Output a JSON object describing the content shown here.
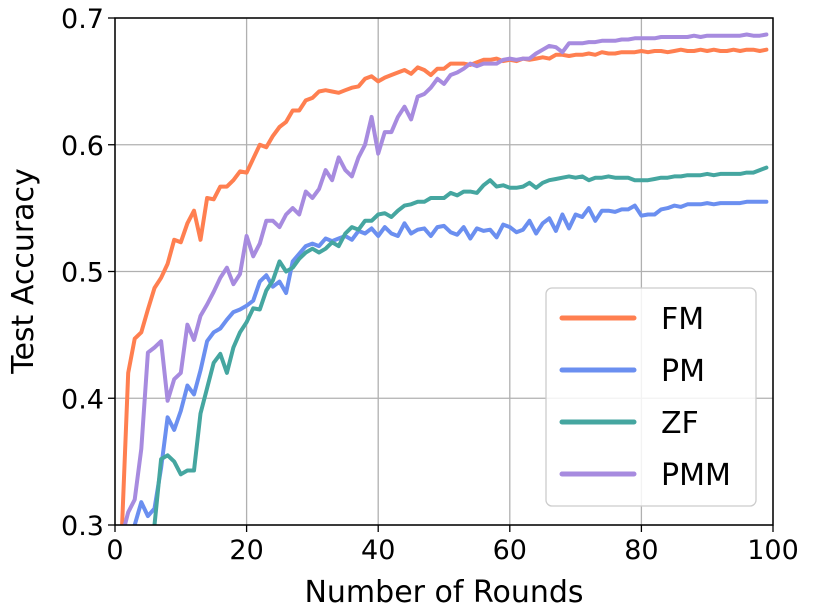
{
  "chart_data": {
    "type": "line",
    "title": "",
    "xlabel": "Number of Rounds",
    "ylabel": "Test Accuracy",
    "xlim": [
      0,
      100
    ],
    "ylim": [
      0.3,
      0.7
    ],
    "xticks": [
      0,
      20,
      40,
      60,
      80,
      100
    ],
    "yticks": [
      0.3,
      0.4,
      0.5,
      0.6,
      0.7
    ],
    "xtick_labels": [
      "0",
      "20",
      "40",
      "60",
      "80",
      "100"
    ],
    "ytick_labels": [
      "0.3",
      "0.4",
      "0.5",
      "0.6",
      "0.7"
    ],
    "grid": true,
    "legend_position": "lower-right",
    "x": [
      1,
      2,
      3,
      4,
      5,
      6,
      7,
      8,
      9,
      10,
      11,
      12,
      13,
      14,
      15,
      16,
      17,
      18,
      19,
      20,
      21,
      22,
      23,
      24,
      25,
      26,
      27,
      28,
      29,
      30,
      31,
      32,
      33,
      34,
      35,
      36,
      37,
      38,
      39,
      40,
      41,
      42,
      43,
      44,
      45,
      46,
      47,
      48,
      49,
      50,
      51,
      52,
      53,
      54,
      55,
      56,
      57,
      58,
      59,
      60,
      61,
      62,
      63,
      64,
      65,
      66,
      67,
      68,
      69,
      70,
      71,
      72,
      73,
      74,
      75,
      76,
      77,
      78,
      79,
      80,
      81,
      82,
      83,
      84,
      85,
      86,
      87,
      88,
      89,
      90,
      91,
      92,
      93,
      94,
      95,
      96,
      97,
      98,
      99
    ],
    "series": [
      {
        "name": "FM",
        "color": "#ff7f50",
        "values": [
          0.29,
          0.42,
          0.447,
          0.452,
          0.47,
          0.487,
          0.495,
          0.506,
          0.525,
          0.523,
          0.538,
          0.548,
          0.525,
          0.558,
          0.557,
          0.567,
          0.567,
          0.572,
          0.579,
          0.578,
          0.589,
          0.6,
          0.598,
          0.607,
          0.614,
          0.618,
          0.627,
          0.627,
          0.635,
          0.637,
          0.642,
          0.643,
          0.642,
          0.641,
          0.643,
          0.645,
          0.646,
          0.652,
          0.654,
          0.65,
          0.653,
          0.655,
          0.657,
          0.659,
          0.656,
          0.661,
          0.659,
          0.655,
          0.66,
          0.66,
          0.664,
          0.664,
          0.664,
          0.663,
          0.665,
          0.667,
          0.667,
          0.668,
          0.666,
          0.667,
          0.666,
          0.668,
          0.667,
          0.668,
          0.669,
          0.668,
          0.671,
          0.671,
          0.67,
          0.671,
          0.671,
          0.672,
          0.671,
          0.673,
          0.672,
          0.672,
          0.673,
          0.673,
          0.673,
          0.674,
          0.673,
          0.674,
          0.674,
          0.673,
          0.674,
          0.675,
          0.674,
          0.674,
          0.675,
          0.674,
          0.675,
          0.674,
          0.674,
          0.675,
          0.674,
          0.675,
          0.675,
          0.674,
          0.675
        ]
      },
      {
        "name": "PM",
        "color": "#6b8ff0",
        "values": [
          0.27,
          0.285,
          0.3,
          0.318,
          0.307,
          0.313,
          0.345,
          0.385,
          0.375,
          0.39,
          0.41,
          0.403,
          0.422,
          0.445,
          0.452,
          0.455,
          0.462,
          0.468,
          0.47,
          0.473,
          0.477,
          0.492,
          0.497,
          0.488,
          0.492,
          0.483,
          0.508,
          0.514,
          0.52,
          0.522,
          0.52,
          0.526,
          0.524,
          0.526,
          0.528,
          0.525,
          0.532,
          0.53,
          0.534,
          0.528,
          0.535,
          0.53,
          0.528,
          0.538,
          0.53,
          0.533,
          0.534,
          0.528,
          0.535,
          0.536,
          0.531,
          0.529,
          0.535,
          0.526,
          0.534,
          0.532,
          0.533,
          0.527,
          0.537,
          0.535,
          0.531,
          0.533,
          0.54,
          0.53,
          0.538,
          0.542,
          0.532,
          0.545,
          0.534,
          0.545,
          0.543,
          0.55,
          0.54,
          0.548,
          0.548,
          0.547,
          0.549,
          0.549,
          0.552,
          0.544,
          0.545,
          0.545,
          0.549,
          0.55,
          0.552,
          0.551,
          0.553,
          0.553,
          0.553,
          0.554,
          0.553,
          0.554,
          0.554,
          0.554,
          0.554,
          0.555,
          0.555,
          0.555,
          0.555
        ]
      },
      {
        "name": "ZF",
        "color": "#45a6a0",
        "values": [
          0.25,
          0.26,
          0.27,
          0.28,
          0.29,
          0.3,
          0.352,
          0.355,
          0.35,
          0.34,
          0.343,
          0.343,
          0.388,
          0.408,
          0.428,
          0.435,
          0.42,
          0.44,
          0.452,
          0.46,
          0.471,
          0.47,
          0.485,
          0.493,
          0.508,
          0.5,
          0.503,
          0.51,
          0.515,
          0.518,
          0.515,
          0.518,
          0.523,
          0.52,
          0.53,
          0.535,
          0.533,
          0.54,
          0.54,
          0.545,
          0.546,
          0.543,
          0.548,
          0.552,
          0.553,
          0.555,
          0.555,
          0.558,
          0.558,
          0.558,
          0.562,
          0.56,
          0.563,
          0.563,
          0.562,
          0.568,
          0.572,
          0.567,
          0.568,
          0.566,
          0.566,
          0.567,
          0.57,
          0.566,
          0.57,
          0.572,
          0.573,
          0.574,
          0.575,
          0.574,
          0.575,
          0.572,
          0.574,
          0.574,
          0.575,
          0.574,
          0.574,
          0.574,
          0.572,
          0.572,
          0.572,
          0.573,
          0.574,
          0.574,
          0.575,
          0.575,
          0.576,
          0.576,
          0.576,
          0.577,
          0.576,
          0.577,
          0.577,
          0.577,
          0.577,
          0.578,
          0.578,
          0.58,
          0.582
        ]
      },
      {
        "name": "PMM",
        "color": "#a78bdf",
        "values": [
          0.29,
          0.31,
          0.32,
          0.36,
          0.436,
          0.44,
          0.445,
          0.398,
          0.415,
          0.42,
          0.458,
          0.446,
          0.465,
          0.474,
          0.484,
          0.495,
          0.503,
          0.49,
          0.498,
          0.528,
          0.512,
          0.522,
          0.54,
          0.54,
          0.535,
          0.545,
          0.55,
          0.545,
          0.563,
          0.558,
          0.565,
          0.58,
          0.572,
          0.59,
          0.58,
          0.575,
          0.59,
          0.6,
          0.622,
          0.593,
          0.61,
          0.61,
          0.622,
          0.63,
          0.62,
          0.638,
          0.64,
          0.645,
          0.652,
          0.648,
          0.655,
          0.657,
          0.66,
          0.664,
          0.662,
          0.664,
          0.664,
          0.664,
          0.667,
          0.668,
          0.667,
          0.668,
          0.668,
          0.672,
          0.675,
          0.678,
          0.677,
          0.673,
          0.68,
          0.68,
          0.68,
          0.681,
          0.681,
          0.682,
          0.682,
          0.682,
          0.683,
          0.683,
          0.684,
          0.684,
          0.684,
          0.684,
          0.685,
          0.685,
          0.685,
          0.685,
          0.685,
          0.686,
          0.685,
          0.686,
          0.686,
          0.686,
          0.686,
          0.686,
          0.686,
          0.687,
          0.686,
          0.686,
          0.687
        ]
      }
    ]
  }
}
